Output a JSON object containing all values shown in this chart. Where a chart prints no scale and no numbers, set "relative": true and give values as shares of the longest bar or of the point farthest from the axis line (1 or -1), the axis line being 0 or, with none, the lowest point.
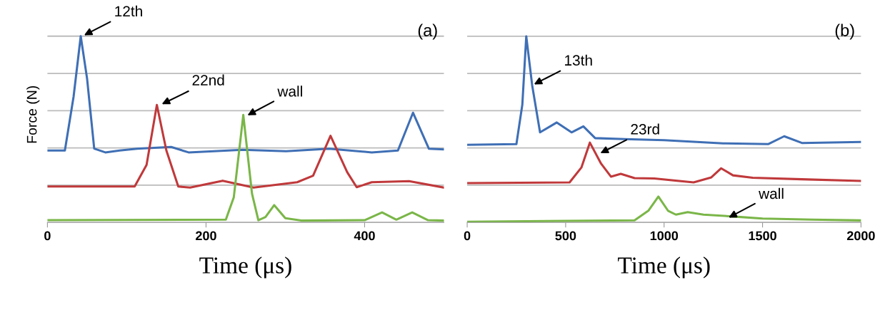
{
  "chart_data": [
    {
      "type": "line",
      "relative": true,
      "xlabel": "Time (μs)",
      "ylabel": "Force (N)",
      "xlim": [
        0,
        500
      ],
      "xticks": [
        0,
        200,
        400
      ],
      "grid": "y",
      "tick_labels": "x",
      "annotations": [
        {
          "text": "12th",
          "x": 44,
          "y": 1.0
        },
        {
          "text": "22nd",
          "x": 142,
          "y": 0.63
        },
        {
          "text": "wall",
          "x": 250,
          "y": 0.57
        },
        "(a)"
      ],
      "series": [
        {
          "color": "#3f6fb5",
          "x": [
            0,
            22,
            33,
            42,
            50,
            59,
            73,
            91,
            113,
            156,
            178,
            246,
            301,
            355,
            409,
            442,
            461,
            481,
            500
          ],
          "values": [
            0.386,
            0.386,
            0.676,
            1,
            0.772,
            0.396,
            0.376,
            0.386,
            0.396,
            0.405,
            0.376,
            0.39,
            0.382,
            0.396,
            0.376,
            0.386,
            0.589,
            0.396,
            0.392
          ]
        },
        {
          "color": "#c0393b",
          "x": [
            0,
            110,
            125,
            138,
            150,
            165,
            180,
            221,
            260,
            315,
            335,
            357,
            378,
            390,
            409,
            456,
            500
          ],
          "values": [
            0.193,
            0.193,
            0.309,
            0.631,
            0.386,
            0.193,
            0.187,
            0.224,
            0.187,
            0.216,
            0.251,
            0.465,
            0.27,
            0.189,
            0.216,
            0.222,
            0.187
          ]
        },
        {
          "color": "#7ab648",
          "x": [
            0,
            225,
            235,
            247,
            258,
            266,
            275,
            286,
            300,
            320,
            400,
            422,
            440,
            460,
            480,
            500
          ],
          "values": [
            0.012,
            0.015,
            0.135,
            0.577,
            0.154,
            0.012,
            0.029,
            0.093,
            0.023,
            0.01,
            0.012,
            0.054,
            0.015,
            0.054,
            0.012,
            0.01
          ]
        }
      ]
    },
    {
      "type": "line",
      "relative": true,
      "xlabel": "Time (μs)",
      "xlim": [
        0,
        2000
      ],
      "xticks": [
        0,
        500,
        1000,
        1500,
        2000
      ],
      "grid": "y",
      "tick_labels": "x",
      "annotations": [
        {
          "text": "13th",
          "x": 330,
          "y": 0.737
        },
        {
          "text": "23rd",
          "x": 667,
          "y": 0.367
        },
        {
          "text": "wall",
          "x": 1319,
          "y": 0.021
        },
        "(b)"
      ],
      "series": [
        {
          "color": "#3f6fb5",
          "x": [
            0,
            250,
            280,
            300,
            330,
            370,
            455,
            530,
            590,
            650,
            800,
            1000,
            1300,
            1530,
            1610,
            1700,
            2000
          ],
          "values": [
            0.417,
            0.421,
            0.632,
            1,
            0.737,
            0.484,
            0.537,
            0.484,
            0.516,
            0.453,
            0.448,
            0.442,
            0.425,
            0.421,
            0.463,
            0.427,
            0.432
          ]
        },
        {
          "color": "#c0393b",
          "x": [
            0,
            520,
            580,
            623,
            680,
            730,
            780,
            850,
            950,
            1150,
            1240,
            1290,
            1350,
            1450,
            1700,
            2000
          ],
          "values": [
            0.211,
            0.215,
            0.295,
            0.429,
            0.316,
            0.246,
            0.261,
            0.238,
            0.236,
            0.215,
            0.242,
            0.291,
            0.253,
            0.24,
            0.232,
            0.223
          ]
        },
        {
          "color": "#7ab648",
          "x": [
            0,
            850,
            920,
            971,
            1020,
            1060,
            1120,
            1200,
            1350,
            1500,
            1750,
            2000
          ],
          "values": [
            0.004,
            0.011,
            0.063,
            0.139,
            0.063,
            0.042,
            0.055,
            0.042,
            0.032,
            0.021,
            0.015,
            0.011
          ]
        }
      ]
    }
  ]
}
